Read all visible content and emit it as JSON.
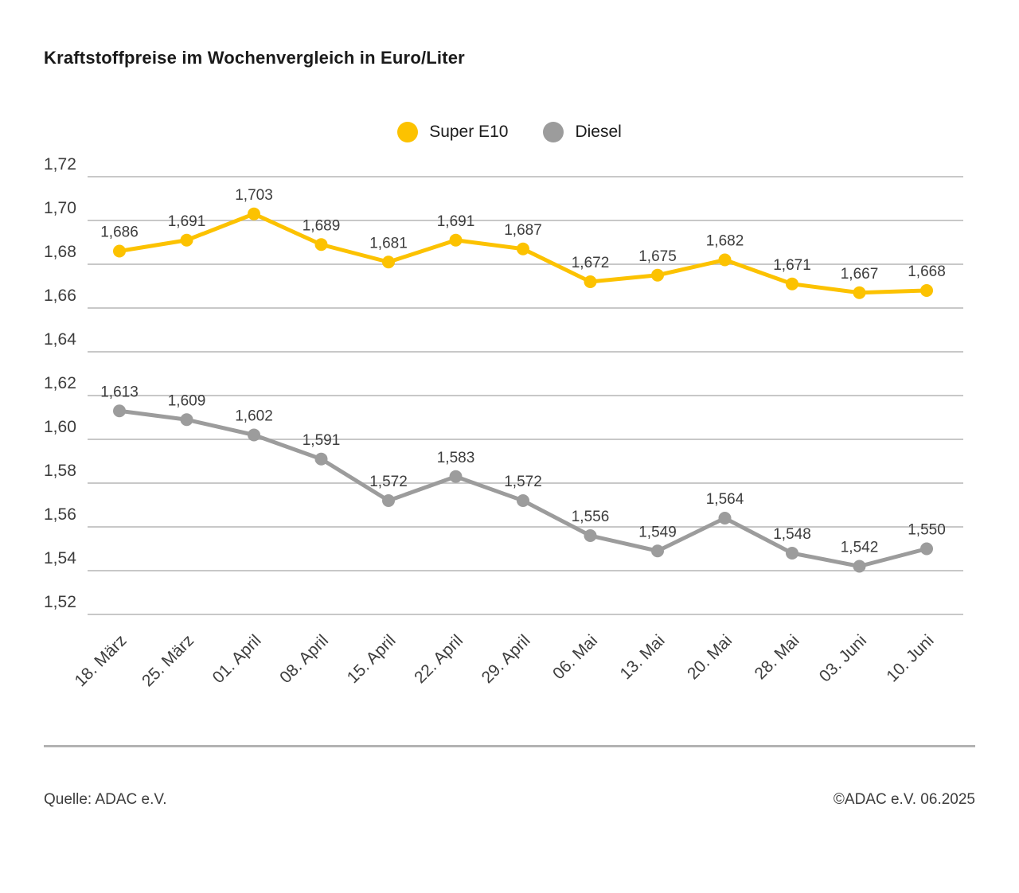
{
  "title": "Kraftstoffpreise im Wochenvergleich in Euro/Liter",
  "footer": {
    "source": "Quelle: ADAC e.V.",
    "copyright": "©ADAC e.V. 06.2025"
  },
  "chart_data": {
    "type": "line",
    "title": "Kraftstoffpreise im Wochenvergleich in Euro/Liter",
    "xlabel": "",
    "ylabel": "Euro/Liter",
    "categories": [
      "18. März",
      "25. März",
      "01. April",
      "08. April",
      "15. April",
      "22. April",
      "29. April",
      "06. Mai",
      "13. Mai",
      "20. Mai",
      "28. Mai",
      "03. Juni",
      "10. Juni"
    ],
    "series": [
      {
        "name": "Super E10",
        "color": "#FCC200",
        "values": [
          1.686,
          1.691,
          1.703,
          1.689,
          1.681,
          1.691,
          1.687,
          1.672,
          1.675,
          1.682,
          1.671,
          1.667,
          1.668
        ]
      },
      {
        "name": "Diesel",
        "color": "#9C9C9C",
        "values": [
          1.613,
          1.609,
          1.602,
          1.591,
          1.572,
          1.583,
          1.572,
          1.556,
          1.549,
          1.564,
          1.548,
          1.542,
          1.55
        ]
      }
    ],
    "ylim": [
      1.52,
      1.72
    ],
    "ytick_step": 0.02,
    "decimal_format": "comma",
    "grid": true,
    "legend_position": "top-center",
    "point_labels": true,
    "grid_color": "#C8C8C8",
    "text_color": "#3D3D3D"
  }
}
